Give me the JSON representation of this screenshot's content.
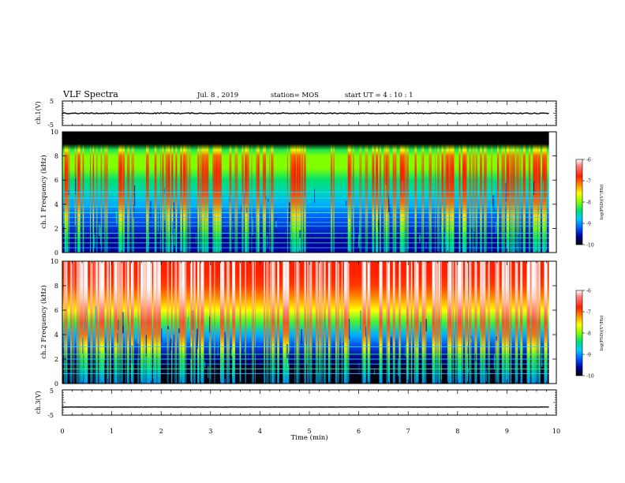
{
  "header": {
    "title": "VLF Spectra",
    "date": "Jul. 8 , 2019",
    "station": "station= MOS",
    "start_ut": "start UT = 4 : 10 : 1"
  },
  "chart_data": {
    "type": "heatmap",
    "x_axis": {
      "label": "Time (min)",
      "range": [
        0,
        10
      ],
      "ticks": [
        "0",
        "1",
        "2",
        "3",
        "4",
        "5",
        "6",
        "7",
        "8",
        "9",
        "10"
      ],
      "data_end_min": 9.85
    },
    "panels": [
      {
        "id": "ch1_waveform",
        "kind": "line",
        "ylabel": "ch.1(V)",
        "yrange": [
          -5,
          5
        ],
        "yticks": [
          "5",
          "-5"
        ],
        "baseline_v": 0,
        "color": "#000000"
      },
      {
        "id": "ch1_spectrogram",
        "kind": "spectrogram",
        "ylabel": "ch.1 Frequency (kHz)",
        "yrange": [
          0,
          10
        ],
        "yticks": [
          "0",
          "2",
          "4",
          "6",
          "8",
          "10"
        ],
        "profile": {
          "freq_khz": [
            0,
            1,
            2,
            3,
            4,
            5,
            6,
            7,
            8,
            8.5,
            9,
            9.3,
            10
          ],
          "log_psd_background": [
            -9.6,
            -9.6,
            -9.4,
            -9.2,
            -8.9,
            -8.6,
            -8.4,
            -8.0,
            -8.0,
            -8.3,
            -10.5,
            -11,
            -11
          ],
          "log_psd_burst": [
            -8.6,
            -8.4,
            -8.0,
            -7.5,
            -7.1,
            -6.9,
            -6.8,
            -6.8,
            -7.0,
            -7.6,
            -10.5,
            -11,
            -11
          ]
        },
        "line_freqs_khz": [
          0.4,
          0.8,
          1.2,
          1.6,
          2.2,
          2.5,
          2.9,
          3.3,
          3.8,
          4.5,
          5.0
        ]
      },
      {
        "id": "ch2_spectrogram",
        "kind": "spectrogram",
        "ylabel": "ch.2 Frequency (kHz)",
        "yrange": [
          0,
          10
        ],
        "yticks": [
          "0",
          "2",
          "4",
          "6",
          "8",
          "10"
        ],
        "profile": {
          "freq_khz": [
            0,
            1,
            2,
            3,
            4,
            5,
            6,
            7,
            8,
            9,
            10
          ],
          "log_psd_background": [
            -10.2,
            -9.9,
            -9.7,
            -9.3,
            -8.9,
            -8.2,
            -7.6,
            -7.2,
            -6.9,
            -6.8,
            -6.8
          ],
          "log_psd_burst": [
            -9.0,
            -8.6,
            -8.2,
            -7.6,
            -7.1,
            -6.6,
            -6.3,
            -6.1,
            -6.0,
            -6.0,
            -6.0
          ]
        },
        "line_freqs_khz": [
          0.8,
          1.2,
          1.6,
          2.0,
          2.4,
          3.0
        ]
      },
      {
        "id": "ch3_waveform",
        "kind": "line",
        "ylabel": "ch.3(V)",
        "yrange": [
          -5,
          5
        ],
        "yticks": [
          "5",
          "-5"
        ],
        "baseline_v": -1.8,
        "color": "#000000"
      }
    ],
    "colorbar": {
      "label": "log(PSD)(V²/Hz)",
      "range": [
        -10,
        -6
      ],
      "ticks": [
        "-6",
        "-7",
        "-8",
        "-9",
        "-10"
      ],
      "stops": [
        {
          "value": -10,
          "color": "#000000"
        },
        {
          "value": -9.6,
          "color": "#0000a0"
        },
        {
          "value": -9.2,
          "color": "#0060ff"
        },
        {
          "value": -8.8,
          "color": "#00ccff"
        },
        {
          "value": -8.4,
          "color": "#00e070"
        },
        {
          "value": -8.0,
          "color": "#80ff00"
        },
        {
          "value": -7.6,
          "color": "#ffff00"
        },
        {
          "value": -7.2,
          "color": "#ff9000"
        },
        {
          "value": -6.8,
          "color": "#ff2000"
        },
        {
          "value": -6.3,
          "color": "#ff8080"
        },
        {
          "value": -6.0,
          "color": "#ffffff"
        }
      ]
    }
  }
}
